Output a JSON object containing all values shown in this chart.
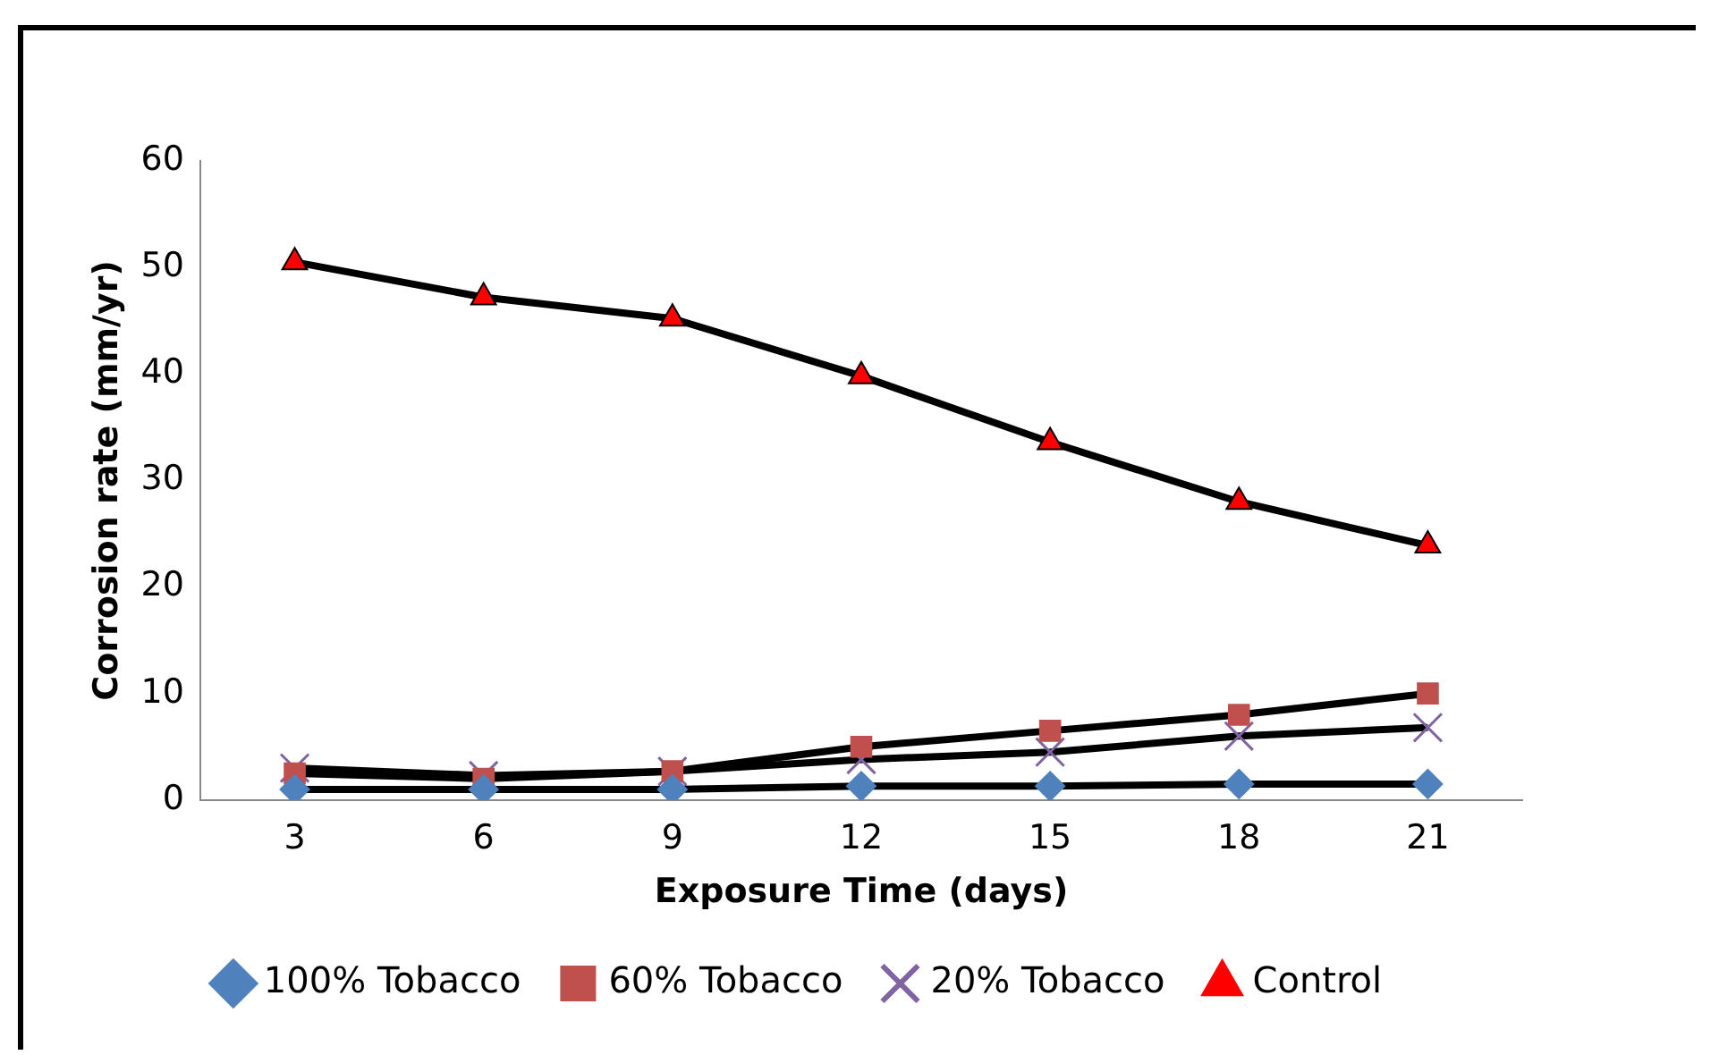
{
  "chart_data": {
    "type": "line",
    "xlabel": "Exposure Time (days)",
    "ylabel": "Corrosion rate (mm/yr)",
    "categories": [
      "3",
      "6",
      "9",
      "12",
      "15",
      "18",
      "21"
    ],
    "series": [
      {
        "name": "100% Tobacco",
        "color": "#4f81bd",
        "marker": "diamond",
        "values": [
          1,
          1,
          1,
          1.3,
          1.3,
          1.5,
          1.5
        ]
      },
      {
        "name": "60% Tobacco",
        "color": "#c0504d",
        "marker": "square",
        "values": [
          2.5,
          2,
          2.7,
          5,
          6.5,
          8,
          10
        ]
      },
      {
        "name": "20% Tobacco",
        "color": "#8064a2",
        "marker": "cross",
        "values": [
          3,
          2.3,
          2.7,
          3.8,
          4.5,
          6,
          6.8
        ]
      },
      {
        "name": "Control",
        "color": "#ff0000",
        "marker": "triangle",
        "values": [
          50.5,
          47.2,
          45.2,
          39.8,
          33.6,
          28,
          23.9
        ]
      }
    ],
    "ylim": [
      0,
      60
    ],
    "yticks": [
      0,
      10,
      20,
      30,
      40,
      50,
      60
    ],
    "grid": false,
    "legend": "bottom",
    "line_style": "solid"
  }
}
